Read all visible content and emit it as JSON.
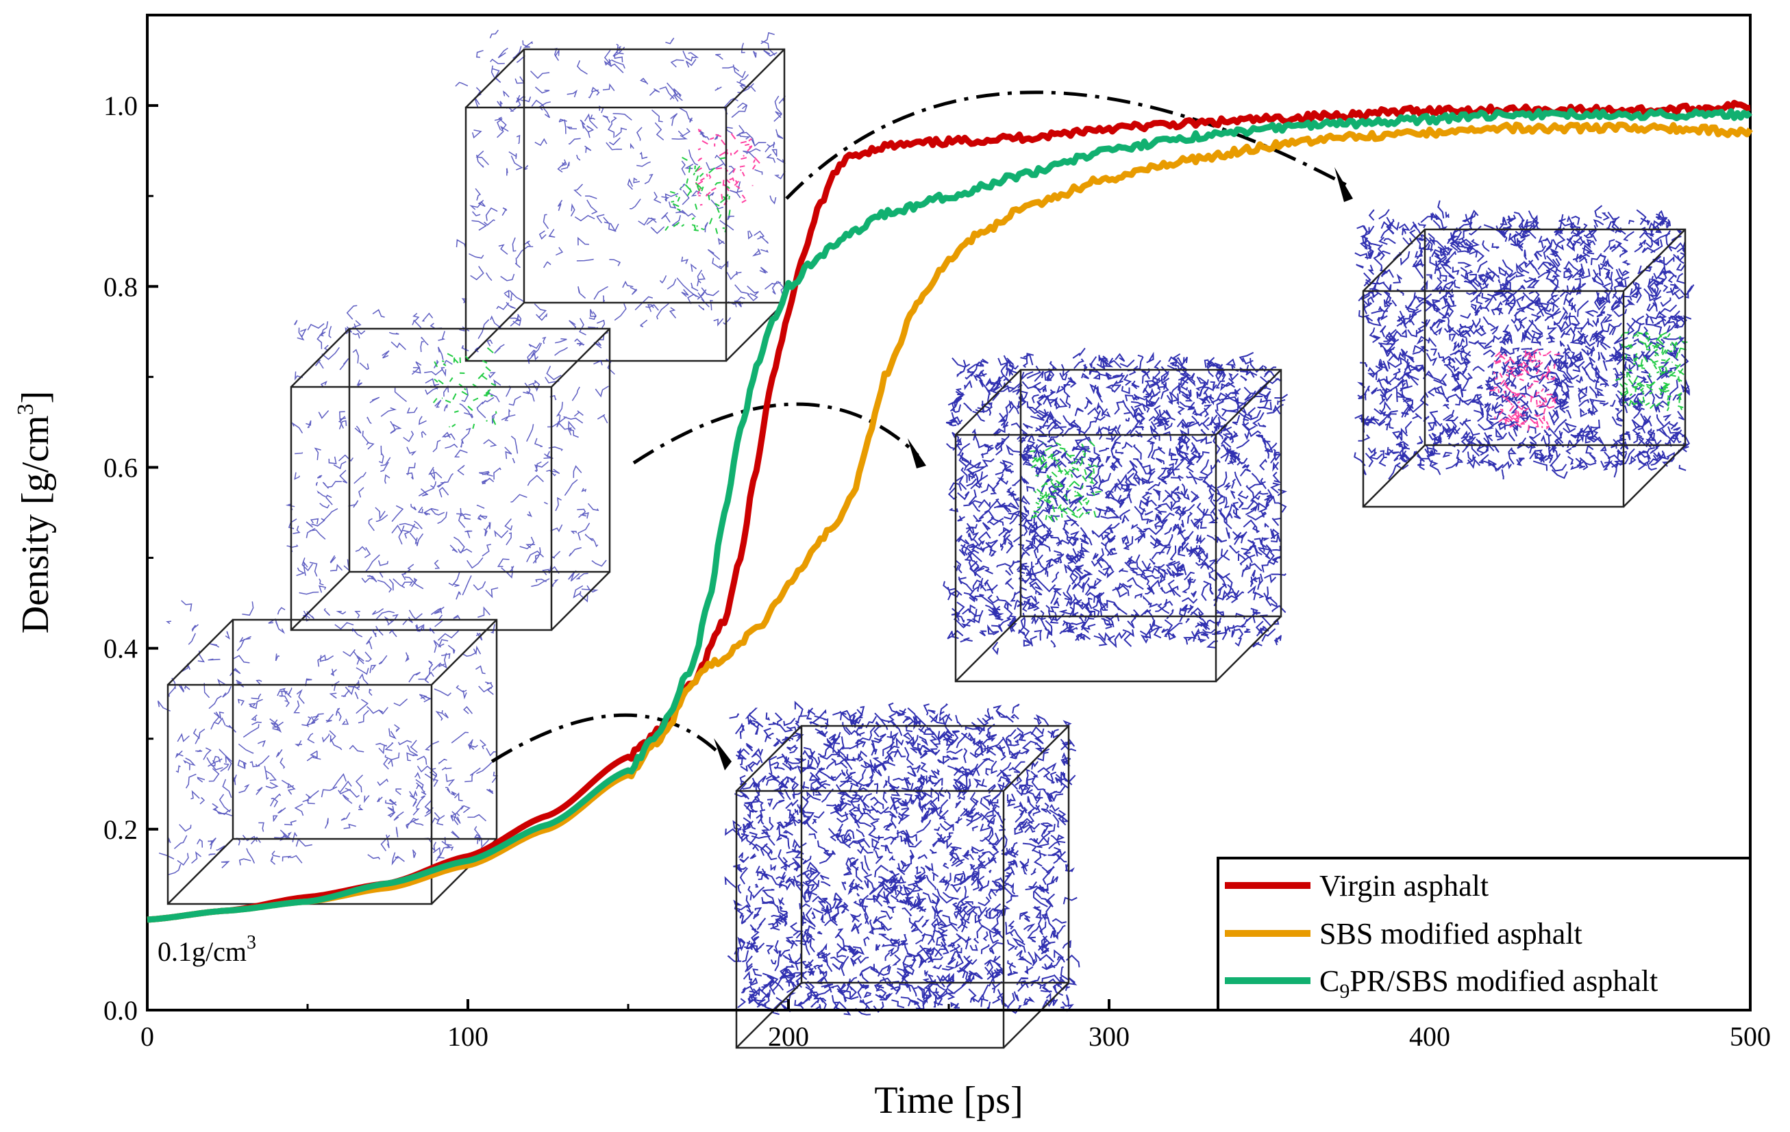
{
  "chart_data": {
    "type": "line",
    "title": "",
    "xlabel": "Time [ps]",
    "ylabel": "Density [g/cm",
    "ylabel_sup": "3",
    "ylabel_tail": "]",
    "xlim": [
      0,
      500
    ],
    "ylim": [
      0,
      1.1
    ],
    "xticks": [
      0,
      100,
      200,
      300,
      400,
      500
    ],
    "xtick_labels": [
      "0",
      "100",
      "200",
      "300",
      "400",
      "500"
    ],
    "yticks": [
      0,
      0.2,
      0.4,
      0.6,
      0.8,
      1.0
    ],
    "ytick_labels": [
      "0.0",
      "0.2",
      "0.4",
      "0.6",
      "0.8",
      "1.0"
    ],
    "grid": false,
    "legend_position": "bottom-right",
    "annotation": {
      "text": "0.1g/cm",
      "sup": "3",
      "x": 2,
      "y": 0.06
    },
    "series": [
      {
        "name": "Virgin asphalt",
        "color": "#cc0000",
        "x": [
          0,
          25,
          50,
          75,
          100,
          125,
          150,
          160,
          170,
          180,
          185,
          190,
          195,
          200,
          205,
          210,
          215,
          220,
          230,
          250,
          275,
          300,
          325,
          350,
          375,
          400,
          425,
          450,
          475,
          500
        ],
        "y": [
          0.1,
          0.11,
          0.125,
          0.14,
          0.17,
          0.215,
          0.28,
          0.31,
          0.36,
          0.43,
          0.5,
          0.6,
          0.7,
          0.77,
          0.84,
          0.89,
          0.93,
          0.945,
          0.955,
          0.96,
          0.965,
          0.975,
          0.98,
          0.985,
          0.99,
          0.995,
          0.995,
          0.995,
          0.995,
          1.0
        ]
      },
      {
        "name": "SBS modified asphalt",
        "color": "#e89b00",
        "x": [
          0,
          25,
          50,
          75,
          100,
          125,
          150,
          160,
          170,
          175,
          180,
          190,
          200,
          210,
          215,
          220,
          225,
          230,
          240,
          250,
          260,
          275,
          300,
          325,
          350,
          375,
          400,
          425,
          450,
          475,
          500
        ],
        "y": [
          0.1,
          0.11,
          0.12,
          0.135,
          0.16,
          0.2,
          0.26,
          0.3,
          0.36,
          0.38,
          0.39,
          0.42,
          0.47,
          0.52,
          0.54,
          0.57,
          0.63,
          0.7,
          0.78,
          0.83,
          0.86,
          0.89,
          0.92,
          0.94,
          0.955,
          0.965,
          0.97,
          0.975,
          0.975,
          0.975,
          0.97
        ]
      },
      {
        "name": "C₉PR/SBS modified asphalt",
        "legend_main": "C",
        "legend_sub": "9",
        "legend_tail": "PR/SBS modified asphalt",
        "color": "#11b070",
        "x": [
          0,
          25,
          50,
          75,
          100,
          125,
          150,
          160,
          170,
          175,
          180,
          185,
          190,
          195,
          200,
          210,
          220,
          230,
          250,
          275,
          300,
          325,
          350,
          375,
          400,
          425,
          450,
          475,
          500
        ],
        "y": [
          0.1,
          0.11,
          0.12,
          0.14,
          0.165,
          0.205,
          0.265,
          0.31,
          0.38,
          0.45,
          0.55,
          0.64,
          0.71,
          0.76,
          0.8,
          0.835,
          0.86,
          0.88,
          0.9,
          0.925,
          0.95,
          0.965,
          0.975,
          0.98,
          0.985,
          0.99,
          0.99,
          0.99,
          0.99
        ]
      }
    ]
  }
}
